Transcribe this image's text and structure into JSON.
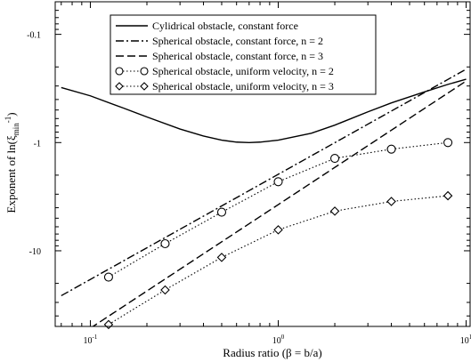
{
  "chart_data": {
    "type": "line",
    "title": "",
    "xlabel": "Radius ratio (β = b/a)",
    "ylabel_main": "Exponent of  ln(ξ",
    "ylabel_sub": "min",
    "ylabel_sup": "-1",
    "ylabel_close": ")",
    "xscale": "log",
    "yscale": "log-reversed",
    "xlim": [
      0.065,
      10.5
    ],
    "ylim": [
      0.05,
      50
    ],
    "grid": false,
    "legend_position": "top-center",
    "x_ticks": [
      {
        "value": 0.1,
        "base": "10",
        "exp": "-1"
      },
      {
        "value": 1,
        "base": "10",
        "exp": "0"
      },
      {
        "value": 10,
        "base": "10",
        "exp": "1"
      }
    ],
    "y_ticks": [
      {
        "value": 0.1,
        "label": "-0.1"
      },
      {
        "value": 1,
        "label": "-1"
      },
      {
        "value": 10,
        "label": "-10"
      }
    ],
    "series": [
      {
        "name": "Cylidrical obstacle, constant force",
        "style": "solid",
        "marker": "none",
        "x": [
          0.07,
          0.1,
          0.15,
          0.2,
          0.3,
          0.4,
          0.5,
          0.6,
          0.7,
          0.8,
          1.0,
          1.5,
          2.0,
          3.0,
          4.0,
          6.0,
          8.0,
          10.0
        ],
        "y": [
          0.31,
          0.37,
          0.48,
          0.58,
          0.75,
          0.87,
          0.95,
          0.99,
          1.0,
          0.99,
          0.95,
          0.82,
          0.69,
          0.52,
          0.43,
          0.34,
          0.29,
          0.26
        ]
      },
      {
        "name": "Spherical obstacle, constant force, n = 2",
        "style": "dashdot",
        "marker": "none",
        "x": [
          0.07,
          10.0
        ],
        "y": [
          26,
          0.21
        ]
      },
      {
        "name": "Spherical obstacle, constant force, n = 3",
        "style": "dashed",
        "marker": "none",
        "x": [
          0.07,
          10.0
        ],
        "y": [
          78,
          0.27
        ]
      },
      {
        "name": "Spherical obstacle, uniform velocity, n = 2",
        "style": "dotted",
        "marker": "circle",
        "x": [
          0.125,
          0.25,
          0.5,
          1.0,
          2.0,
          4.0,
          8.0
        ],
        "y": [
          17.5,
          8.6,
          4.4,
          2.3,
          1.4,
          1.15,
          1.0
        ]
      },
      {
        "name": "Spherical obstacle, uniform velocity, n = 3",
        "style": "dotted",
        "marker": "diamond",
        "x": [
          0.125,
          0.25,
          0.5,
          1.0,
          2.0,
          4.0,
          8.0
        ],
        "y": [
          48,
          23,
          11.5,
          6.4,
          4.3,
          3.5,
          3.1
        ]
      }
    ]
  }
}
